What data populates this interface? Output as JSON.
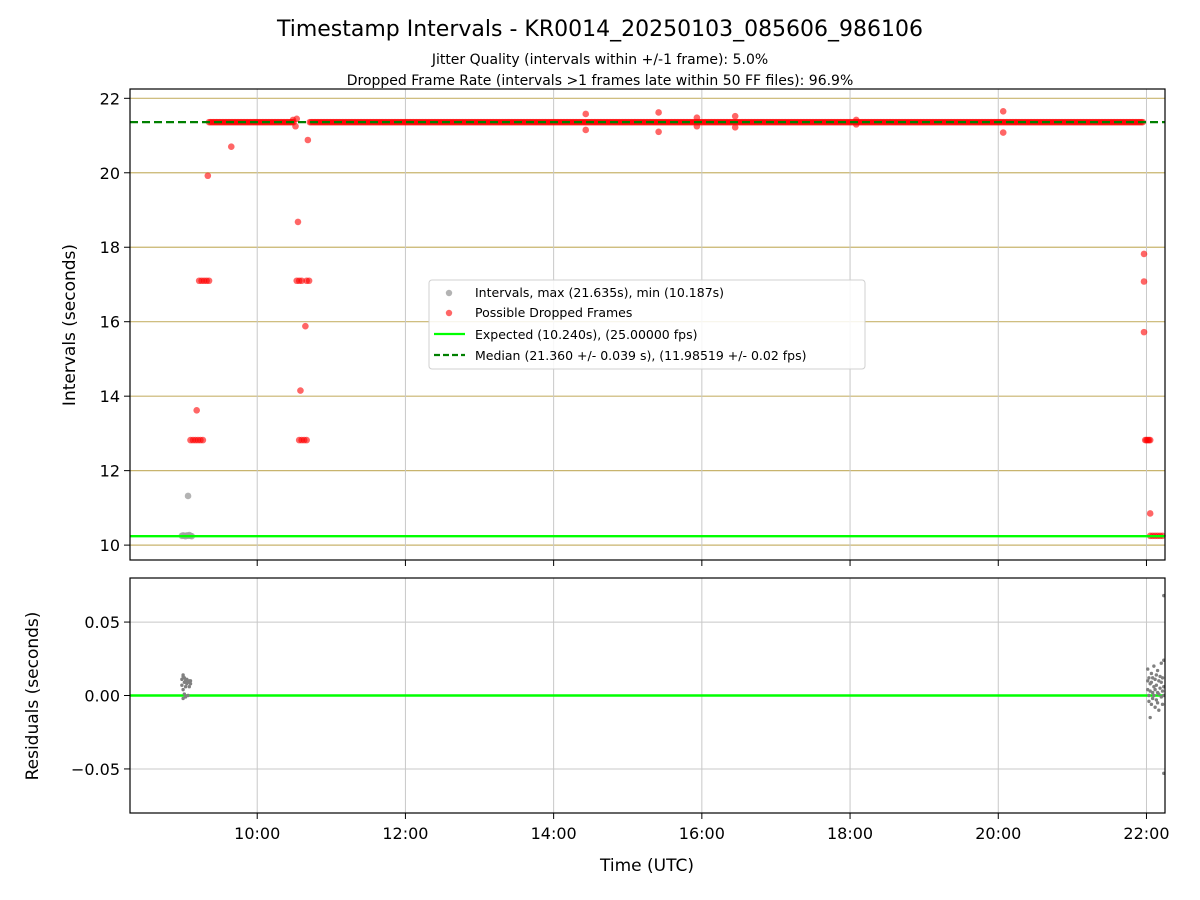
{
  "colors": {
    "intervals": "#a0a0a0",
    "dropped": "#ff0000",
    "expected": "#00ff00",
    "median": "#008000",
    "grid_top": "#c8b46e",
    "grid_bottom": "#c8c8c8",
    "residual_points": "#808080"
  },
  "chart_data": [
    {
      "type": "scatter",
      "title": "Timestamp Intervals - KR0014_20250103_085606_986106",
      "subtitles": [
        "Jitter Quality (intervals within +/-1 frame): 5.0%",
        "Dropped Frame Rate (intervals >1 frames late within 50 FF files): 96.9%"
      ],
      "xlabel": "",
      "ylabel": "Intervals (seconds)",
      "xlim": [
        "08:17",
        "22:15"
      ],
      "ylim": [
        9.6,
        22.25
      ],
      "grid": "horizontal",
      "yticks": [
        10,
        12,
        14,
        16,
        18,
        20,
        22
      ],
      "ytick_labels": [
        "10",
        "12",
        "14",
        "16",
        "18",
        "20",
        "22"
      ],
      "legend_position": "center",
      "legend": [
        "Intervals, max (21.635s), min (10.187s)",
        "Possible Dropped Frames",
        "Expected (10.240s), (25.00000 fps)",
        "Median (21.360 +/- 0.039 s), (11.98519 +/- 0.02 fps)"
      ],
      "expected_y": 10.24,
      "median_y": 21.36,
      "series": [
        {
          "name": "Intervals, max (21.635s), min (10.187s)",
          "points": [
            [
              "08:59",
              10.25
            ],
            [
              "09:00",
              10.26
            ],
            [
              "09:01",
              10.25
            ],
            [
              "09:02",
              10.24
            ],
            [
              "09:03",
              10.26
            ],
            [
              "09:04",
              10.25
            ],
            [
              "09:05",
              10.27
            ],
            [
              "09:06",
              10.25
            ],
            [
              "09:07",
              10.24
            ],
            [
              "09:04",
              11.32
            ]
          ]
        },
        {
          "name": "Possible Dropped Frames",
          "points": [
            [
              "09:06",
              12.82
            ],
            [
              "09:08",
              12.82
            ],
            [
              "09:10",
              12.82
            ],
            [
              "09:12",
              12.82
            ],
            [
              "09:14",
              12.82
            ],
            [
              "09:16",
              12.82
            ],
            [
              "09:11",
              13.62
            ],
            [
              "09:13",
              17.1
            ],
            [
              "09:15",
              17.1
            ],
            [
              "09:17",
              17.1
            ],
            [
              "09:19",
              17.1
            ],
            [
              "09:21",
              17.1
            ],
            [
              "09:20",
              19.92
            ],
            [
              "09:39",
              20.7
            ],
            [
              "10:29",
              21.42
            ],
            [
              "10:31",
              21.25
            ],
            [
              "10:32",
              21.45
            ],
            [
              "10:32",
              17.1
            ],
            [
              "10:34",
              17.1
            ],
            [
              "10:36",
              17.1
            ],
            [
              "10:40",
              17.1
            ],
            [
              "10:42",
              17.1
            ],
            [
              "10:33",
              18.68
            ],
            [
              "10:35",
              14.15
            ],
            [
              "10:39",
              15.88
            ],
            [
              "10:41",
              20.88
            ],
            [
              "10:34",
              12.82
            ],
            [
              "10:36",
              12.82
            ],
            [
              "10:38",
              12.82
            ],
            [
              "10:40",
              12.82
            ],
            [
              "14:26",
              21.58
            ],
            [
              "14:26",
              21.15
            ],
            [
              "15:25",
              21.62
            ],
            [
              "15:25",
              21.1
            ],
            [
              "15:56",
              21.48
            ],
            [
              "15:56",
              21.25
            ],
            [
              "16:27",
              21.52
            ],
            [
              "16:27",
              21.22
            ],
            [
              "18:05",
              21.42
            ],
            [
              "18:05",
              21.3
            ],
            [
              "20:04",
              21.65
            ],
            [
              "20:04",
              21.08
            ],
            [
              "21:58",
              17.82
            ],
            [
              "21:58",
              17.08
            ],
            [
              "21:58",
              15.72
            ],
            [
              "21:59",
              12.82
            ],
            [
              "22:00",
              12.82
            ],
            [
              "22:01",
              12.82
            ],
            [
              "22:02",
              12.82
            ],
            [
              "22:03",
              12.82
            ],
            [
              "22:03",
              10.85
            ],
            [
              "22:03",
              10.25
            ],
            [
              "22:05",
              10.25
            ],
            [
              "22:07",
              10.25
            ],
            [
              "22:09",
              10.25
            ],
            [
              "22:11",
              10.25
            ],
            [
              "22:13",
              10.25
            ]
          ],
          "band": {
            "from": "09:21",
            "to": "21:58",
            "y": 21.36,
            "gap": [
              "10:30",
              "10:42"
            ]
          }
        }
      ]
    },
    {
      "type": "scatter",
      "title": "",
      "xlabel": "Time (UTC)",
      "ylabel": "Residuals (seconds)",
      "xlim": [
        "08:17",
        "22:15"
      ],
      "ylim": [
        -0.08,
        0.08
      ],
      "grid": "both",
      "xticks": [
        "10:00",
        "12:00",
        "14:00",
        "16:00",
        "18:00",
        "20:00",
        "22:00"
      ],
      "xtick_labels": [
        "10:00",
        "12:00",
        "14:00",
        "16:00",
        "18:00",
        "20:00",
        "22:00"
      ],
      "yticks": [
        -0.05,
        0.0,
        0.05
      ],
      "ytick_labels": [
        "−0.05",
        "0.00",
        "0.05"
      ],
      "zero_line": 0.0,
      "series": [
        {
          "points": [
            [
              "08:59",
              0.011
            ],
            [
              "08:59",
              0.007
            ],
            [
              "09:00",
              0.013
            ],
            [
              "09:00",
              0.004
            ],
            [
              "09:00",
              -0.002
            ],
            [
              "09:01",
              0.009
            ],
            [
              "09:01",
              0.012
            ],
            [
              "09:01",
              0.001
            ],
            [
              "09:02",
              0.006
            ],
            [
              "09:02",
              0.01
            ],
            [
              "09:03",
              0.008
            ],
            [
              "09:03",
              0.011
            ],
            [
              "09:04",
              0.009
            ],
            [
              "09:04",
              0.0
            ],
            [
              "09:05",
              0.01
            ],
            [
              "09:05",
              0.006
            ],
            [
              "09:06",
              0.008
            ],
            [
              "09:00",
              0.014
            ],
            [
              "09:02",
              -0.001
            ],
            [
              "09:06",
              0.01
            ],
            [
              "22:01",
              0.018
            ],
            [
              "22:01",
              0.01
            ],
            [
              "22:01",
              0.004
            ],
            [
              "22:02",
              -0.004
            ],
            [
              "22:02",
              0.012
            ],
            [
              "22:02",
              0.0
            ],
            [
              "22:03",
              0.008
            ],
            [
              "22:03",
              -0.015
            ],
            [
              "22:03",
              0.003
            ],
            [
              "22:04",
              0.015
            ],
            [
              "22:04",
              -0.006
            ],
            [
              "22:04",
              0.009
            ],
            [
              "22:05",
              0.002
            ],
            [
              "22:05",
              0.012
            ],
            [
              "22:05",
              -0.002
            ],
            [
              "22:06",
              0.006
            ],
            [
              "22:06",
              0.02
            ],
            [
              "22:06",
              0.0
            ],
            [
              "22:07",
              -0.008
            ],
            [
              "22:07",
              0.011
            ],
            [
              "22:07",
              0.004
            ],
            [
              "22:08",
              0.014
            ],
            [
              "22:08",
              -0.003
            ],
            [
              "22:08",
              0.007
            ],
            [
              "22:09",
              0.002
            ],
            [
              "22:09",
              0.017
            ],
            [
              "22:09",
              -0.005
            ],
            [
              "22:10",
              0.01
            ],
            [
              "22:10",
              0.001
            ],
            [
              "22:10",
              -0.01
            ],
            [
              "22:11",
              0.013
            ],
            [
              "22:11",
              0.005
            ],
            [
              "22:12",
              -0.001
            ],
            [
              "22:12",
              0.009
            ],
            [
              "22:12",
              0.022
            ],
            [
              "22:13",
              0.003
            ],
            [
              "22:13",
              -0.006
            ],
            [
              "22:13",
              0.012
            ],
            [
              "22:14",
              0.006
            ],
            [
              "22:14",
              0.0
            ],
            [
              "22:14",
              0.068
            ],
            [
              "22:14",
              -0.053
            ],
            [
              "22:14",
              0.024
            ]
          ]
        }
      ]
    }
  ]
}
